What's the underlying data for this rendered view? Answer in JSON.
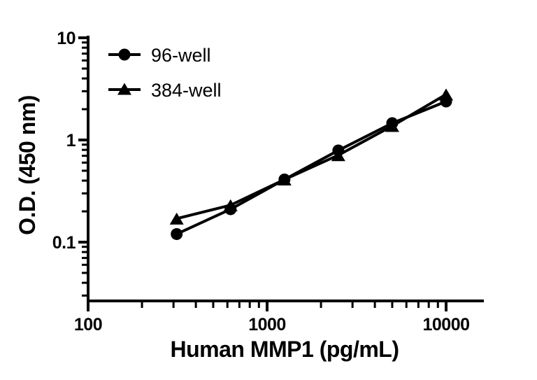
{
  "figure": {
    "background": "#ffffff",
    "ink_color": "#000000"
  },
  "chart_data": {
    "type": "line",
    "title": "",
    "xlabel": "Human MMP1 (pg/mL)",
    "ylabel": "O.D. (450 nm)",
    "x_scale": "log10",
    "y_scale": "log10",
    "xlim": [
      100,
      16000
    ],
    "ylim": [
      0.027,
      10.5
    ],
    "grid": false,
    "legend_position": "top-left-inside",
    "x_major_ticks": [
      100,
      1000,
      10000
    ],
    "x_major_tick_labels": [
      "100",
      "1000",
      "10000"
    ],
    "y_major_ticks": [
      10,
      1,
      0.1
    ],
    "y_major_tick_labels": [
      "10",
      "1",
      "0.1"
    ],
    "x": [
      312.5,
      625,
      1250,
      2500,
      5000,
      10000
    ],
    "series": [
      {
        "name": "96-well",
        "marker": "circle",
        "color": "#000000",
        "values": [
          0.12,
          0.21,
          0.41,
          0.79,
          1.46,
          2.38
        ]
      },
      {
        "name": "384-well",
        "marker": "triangle",
        "color": "#000000",
        "values": [
          0.17,
          0.23,
          0.41,
          0.71,
          1.37,
          2.79
        ]
      }
    ]
  }
}
